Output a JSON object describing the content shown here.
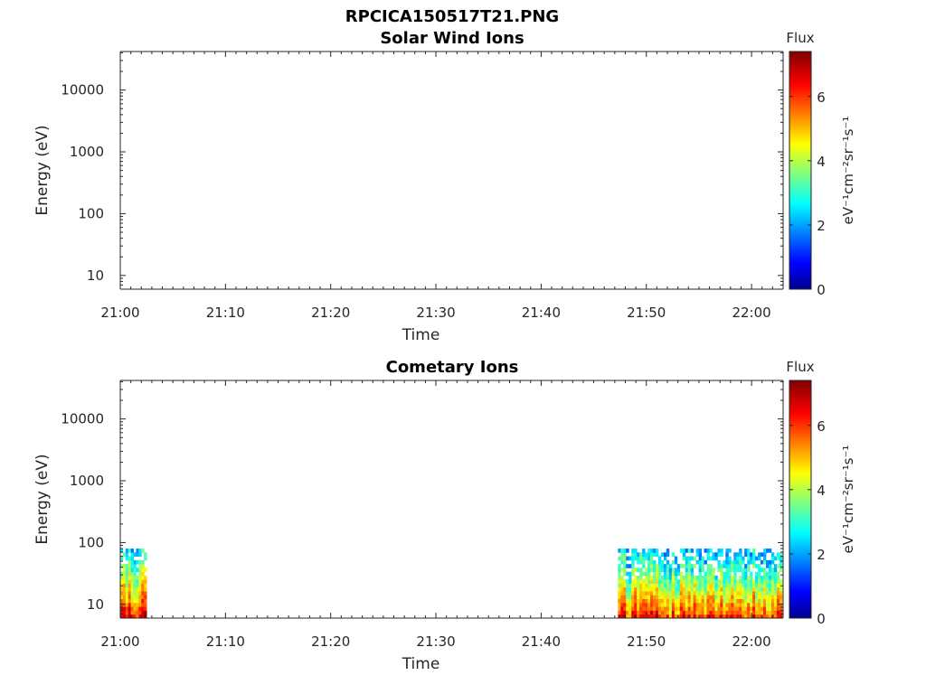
{
  "figure": {
    "title": "RPCICA150517T21.PNG"
  },
  "colorbar": {
    "title": "Flux",
    "ticks": [
      0,
      2,
      4,
      6
    ],
    "range": [
      0,
      7.4
    ],
    "colormap": "jet"
  },
  "chart_data": [
    {
      "type": "heatmap",
      "title": "Solar Wind Ions",
      "xlabel": "Time",
      "ylabel": "Energy (eV)",
      "x_ticks": [
        "21:00",
        "21:10",
        "21:20",
        "21:30",
        "21:40",
        "21:50",
        "22:00"
      ],
      "xlim": [
        "21:00",
        "22:03"
      ],
      "y_scale": "log",
      "y_ticks": [
        10,
        100,
        1000,
        10000
      ],
      "ylim": [
        6,
        42000
      ],
      "colorbar_label": "eV⁻¹cm⁻²sr⁻¹s⁻¹",
      "blocks": []
    },
    {
      "type": "heatmap",
      "title": "Cometary Ions",
      "xlabel": "Time",
      "ylabel": "Energy (eV)",
      "x_ticks": [
        "21:00",
        "21:10",
        "21:20",
        "21:30",
        "21:40",
        "21:50",
        "22:00"
      ],
      "xlim": [
        "21:00",
        "22:03"
      ],
      "y_scale": "log",
      "y_ticks": [
        10,
        100,
        1000,
        10000
      ],
      "ylim": [
        6,
        42000
      ],
      "colorbar_label": "eV⁻¹cm⁻²sr⁻¹s⁻¹",
      "blocks": [
        {
          "start": "21:00",
          "end": "21:02.5",
          "energy_min": 6,
          "energy_max": 80,
          "flux_low_energy": 6.5,
          "flux_high_energy": 2.5
        },
        {
          "start": "21:47.3",
          "end": "22:02.9",
          "energy_min": 6,
          "energy_max": 80,
          "flux_low_energy": 6.2,
          "flux_high_energy": 2.2
        }
      ]
    }
  ]
}
